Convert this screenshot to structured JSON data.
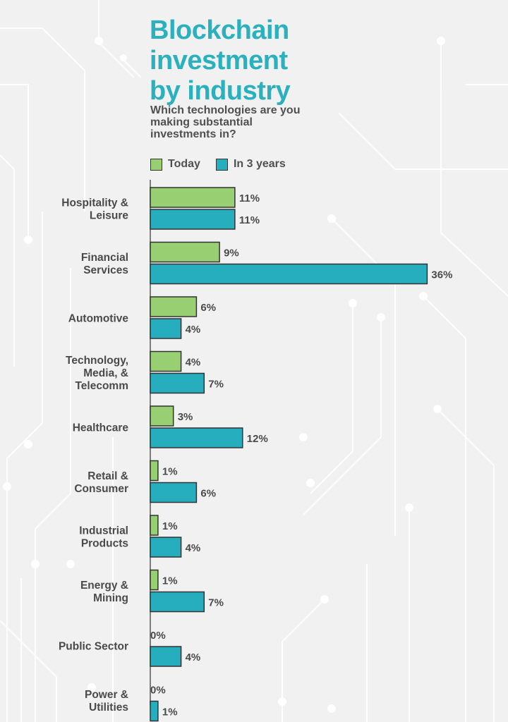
{
  "title_lines": [
    "Blockchain",
    "investment",
    "by industry"
  ],
  "subtitle": "Which technologies are you making substantial investments in?",
  "legend": {
    "today": "Today",
    "in3": "In 3 years"
  },
  "colors": {
    "today": "#98cf72",
    "in3": "#26aebf",
    "title": "#2bb0be",
    "background": "#f1f1f1"
  },
  "chart_data": {
    "type": "bar",
    "orientation": "horizontal",
    "categories": [
      "Hospitality & Leisure",
      "Financial Services",
      "Automotive",
      "Technology, Media, & Telecomm",
      "Healthcare",
      "Retail & Consumer",
      "Industrial Products",
      "Energy & Mining",
      "Public Sector",
      "Power & Utilities"
    ],
    "category_lines": [
      [
        "Hospitality &",
        "Leisure"
      ],
      [
        "Financial",
        "Services"
      ],
      [
        "Automotive"
      ],
      [
        "Technology,",
        "Media, &",
        "Telecomm"
      ],
      [
        "Healthcare"
      ],
      [
        "Retail &",
        "Consumer"
      ],
      [
        "Industrial",
        "Products"
      ],
      [
        "Energy &",
        "Mining"
      ],
      [
        "Public Sector"
      ],
      [
        "Power &",
        "Utilities"
      ]
    ],
    "series": [
      {
        "name": "Today",
        "values": [
          11,
          9,
          6,
          4,
          3,
          1,
          1,
          1,
          0,
          0
        ],
        "labels": [
          "11%",
          "9%",
          "6%",
          "4%",
          "3%",
          "1%",
          "1%",
          "1%",
          "0%",
          "0%"
        ]
      },
      {
        "name": "In 3 years",
        "values": [
          11,
          36,
          4,
          7,
          12,
          6,
          4,
          7,
          4,
          1
        ],
        "labels": [
          "11%",
          "36%",
          "4%",
          "7%",
          "12%",
          "6%",
          "4%",
          "7%",
          "4%",
          "1%"
        ]
      }
    ],
    "unit": "%",
    "title": "Blockchain investment by industry",
    "subtitle": "Which technologies are you making substantial investments in?",
    "legend_position": "top-left",
    "grid": false
  }
}
